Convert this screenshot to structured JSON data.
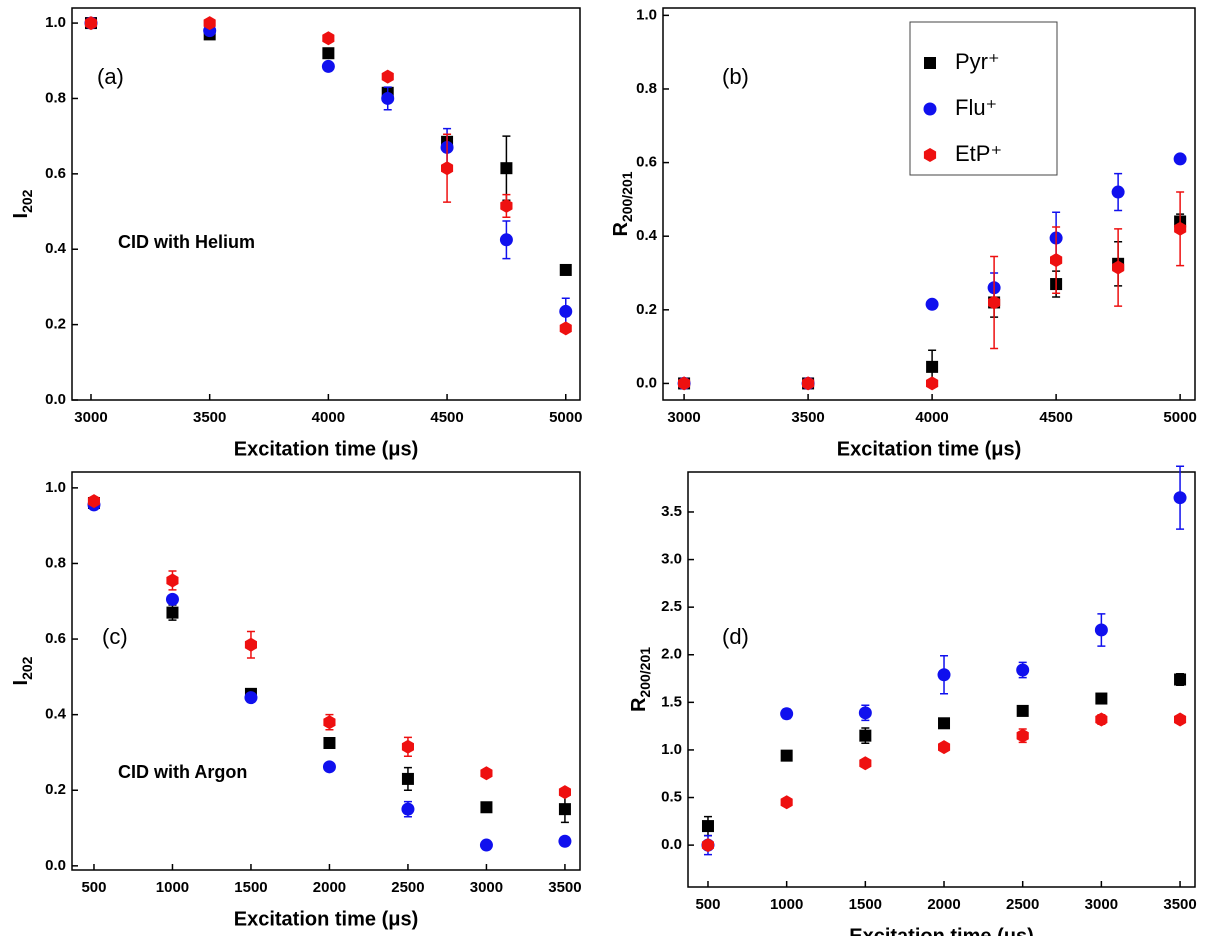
{
  "chart_data": [
    {
      "type": "scatter",
      "label": "(a)",
      "annotation": "CID with Helium",
      "xlabel": "Excitation time (μs)",
      "ylabel": "I",
      "ylabel_sub": "202",
      "x": [
        3000,
        3500,
        4000,
        4250,
        4500,
        4750,
        5000
      ],
      "xlim": [
        2920,
        5060
      ],
      "xticks": [
        3000,
        3500,
        4000,
        4500,
        5000
      ],
      "ylim": [
        0,
        1.04
      ],
      "yticks": [
        {
          "value": 0,
          "label": "0.0"
        },
        0.2,
        0.4,
        0.6,
        0.8,
        {
          "value": 1,
          "label": "1.0"
        }
      ],
      "series": [
        {
          "color": "#000000",
          "marker": "square",
          "values": [
            1.0,
            0.97,
            0.92,
            0.815,
            0.685,
            0.615,
            0.345
          ],
          "errors": [
            null,
            null,
            null,
            null,
            null,
            0.085,
            null
          ]
        },
        {
          "color": "#1010ee",
          "marker": "circle",
          "values": [
            1.0,
            0.98,
            0.885,
            0.8,
            0.67,
            0.425,
            0.235
          ],
          "errors": [
            null,
            null,
            null,
            0.03,
            0.05,
            0.05,
            0.035
          ]
        },
        {
          "color": "#ee1010",
          "marker": "hexagon",
          "values": [
            1.0,
            1.0,
            0.96,
            0.858,
            0.615,
            0.515,
            0.19
          ],
          "errors": [
            null,
            null,
            null,
            null,
            0.09,
            0.03,
            null
          ]
        }
      ]
    },
    {
      "type": "scatter",
      "label": "(b)",
      "xlabel": "Excitation time (μs)",
      "ylabel": "R",
      "ylabel_sub": "200/201",
      "x": [
        3000,
        3500,
        4000,
        4250,
        4500,
        4750,
        5000
      ],
      "xlim": [
        2915,
        5060
      ],
      "xticks": [
        3000,
        3500,
        4000,
        4500,
        5000
      ],
      "ylim": [
        -0.045,
        1.02
      ],
      "yticks": [
        {
          "value": 0,
          "label": "0.0"
        },
        0.2,
        0.4,
        0.6,
        0.8,
        {
          "value": 1,
          "label": "1.0"
        }
      ],
      "legend": "upper right",
      "series": [
        {
          "name": "Pyr⁺",
          "color": "#000000",
          "marker": "square",
          "values": [
            0,
            0,
            0.045,
            0.22,
            0.27,
            0.325,
            0.44
          ],
          "errors": [
            null,
            null,
            0.045,
            0.04,
            0.035,
            0.06,
            0.02
          ]
        },
        {
          "name": "Flu⁺",
          "color": "#1010ee",
          "marker": "circle",
          "values": [
            0,
            0,
            0.215,
            0.26,
            0.395,
            0.52,
            0.61
          ],
          "errors": [
            null,
            null,
            null,
            0.04,
            0.07,
            0.05,
            null
          ]
        },
        {
          "name": "EtP⁺",
          "color": "#ee1010",
          "marker": "hexagon",
          "values": [
            0,
            0,
            0,
            0.22,
            0.335,
            0.315,
            0.42
          ],
          "errors": [
            null,
            null,
            null,
            0.125,
            0.09,
            0.105,
            0.1
          ]
        }
      ]
    },
    {
      "type": "scatter",
      "label": "(c)",
      "annotation": "CID with Argon",
      "xlabel": "Excitation time (μs)",
      "ylabel": "I",
      "ylabel_sub": "202",
      "x": [
        500,
        1000,
        1500,
        2000,
        2500,
        3000,
        3500
      ],
      "xlim": [
        360,
        3596
      ],
      "xticks": [
        500,
        1000,
        1500,
        2000,
        2500,
        3000,
        3500
      ],
      "ylim": [
        -0.011,
        1.042
      ],
      "yticks": [
        {
          "value": 0,
          "label": "0.0"
        },
        0.2,
        0.4,
        0.6,
        0.8,
        {
          "value": 1,
          "label": "1.0"
        }
      ],
      "series": [
        {
          "color": "#000000",
          "marker": "square",
          "values": [
            0.96,
            0.67,
            0.455,
            0.325,
            0.23,
            0.155,
            0.15
          ],
          "errors": [
            null,
            0.02,
            null,
            null,
            0.03,
            null,
            0.035
          ]
        },
        {
          "color": "#1010ee",
          "marker": "circle",
          "values": [
            0.955,
            0.705,
            0.445,
            0.262,
            0.15,
            0.055,
            0.065
          ],
          "errors": [
            null,
            null,
            null,
            null,
            0.02,
            null,
            null
          ]
        },
        {
          "color": "#ee1010",
          "marker": "hexagon",
          "values": [
            0.965,
            0.755,
            0.585,
            0.38,
            0.315,
            0.245,
            0.195
          ],
          "errors": [
            null,
            0.025,
            0.035,
            0.02,
            0.025,
            null,
            null
          ]
        }
      ]
    },
    {
      "type": "scatter",
      "label": "(d)",
      "xlabel": "Excitation time (μs)",
      "ylabel": "R",
      "ylabel_sub": "200/201",
      "x": [
        500,
        1000,
        1500,
        2000,
        2500,
        3000,
        3500
      ],
      "xlim": [
        373,
        3595
      ],
      "xticks": [
        500,
        1000,
        1500,
        2000,
        2500,
        3000,
        3500
      ],
      "ylim": [
        -0.44,
        3.92
      ],
      "yticks": [
        {
          "value": 0,
          "label": "0.0"
        },
        0.5,
        {
          "value": 1,
          "label": "1.0"
        },
        1.5,
        {
          "value": 2,
          "label": "2.0"
        },
        2.5,
        {
          "value": 3,
          "label": "3.0"
        },
        3.5
      ],
      "series": [
        {
          "color": "#000000",
          "marker": "square",
          "values": [
            0.2,
            0.94,
            1.15,
            1.28,
            1.41,
            1.54,
            1.74
          ],
          "errors": [
            0.1,
            null,
            0.08,
            null,
            null,
            null,
            0.06
          ]
        },
        {
          "color": "#1010ee",
          "marker": "circle",
          "values": [
            0,
            1.38,
            1.39,
            1.79,
            1.84,
            2.26,
            3.65
          ],
          "errors": [
            0.1,
            0.05,
            0.08,
            0.2,
            0.08,
            0.17,
            0.33
          ]
        },
        {
          "color": "#ee1010",
          "marker": "hexagon",
          "values": [
            0,
            0.45,
            0.86,
            1.03,
            1.15,
            1.32,
            1.32
          ],
          "errors": [
            null,
            null,
            null,
            null,
            0.07,
            0.05,
            null
          ]
        }
      ]
    }
  ]
}
